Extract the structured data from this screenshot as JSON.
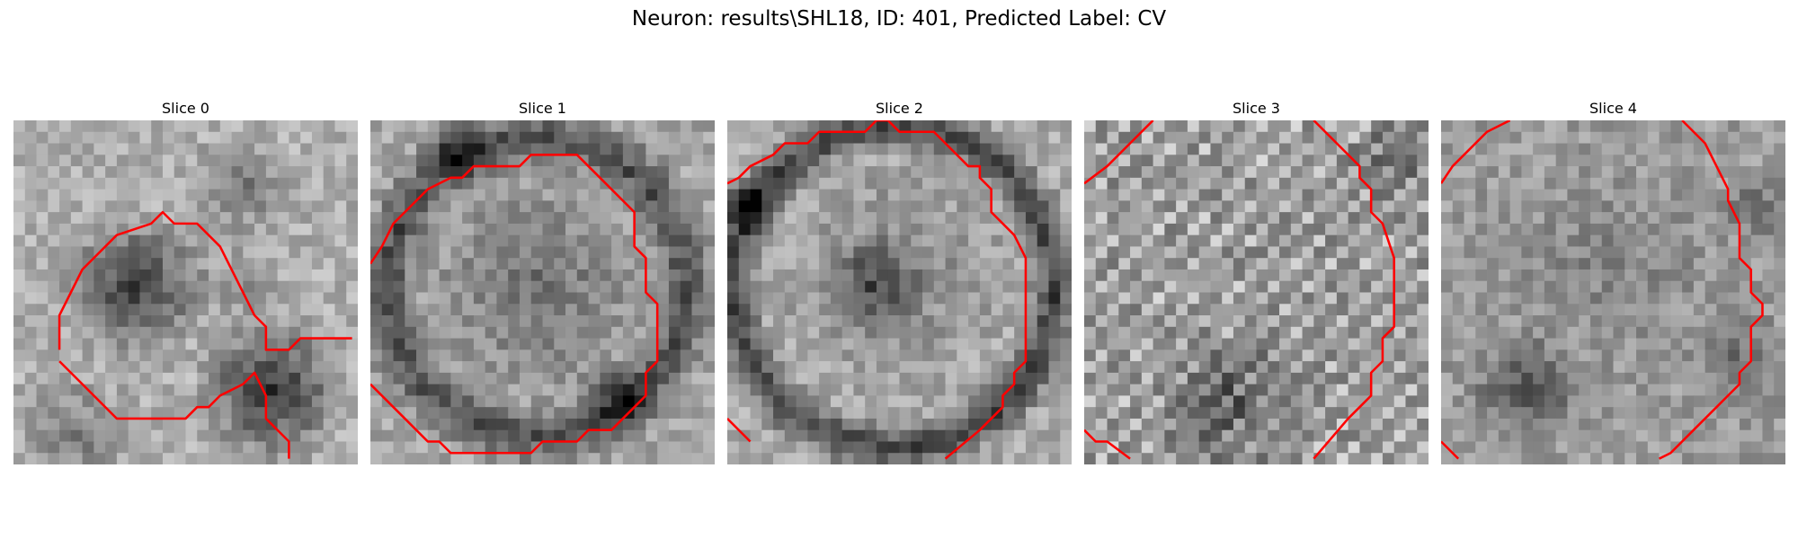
{
  "figure": {
    "title": "Neuron: results\\SHL18, ID: 401, Predicted Label: CV"
  },
  "panels": [
    {
      "title": "Slice 0"
    },
    {
      "title": "Slice 1"
    },
    {
      "title": "Slice 2"
    },
    {
      "title": "Slice 3"
    },
    {
      "title": "Slice 4"
    }
  ],
  "colors": {
    "contour": "#ff0000",
    "background": "#ffffff",
    "colormap": "gray"
  }
}
